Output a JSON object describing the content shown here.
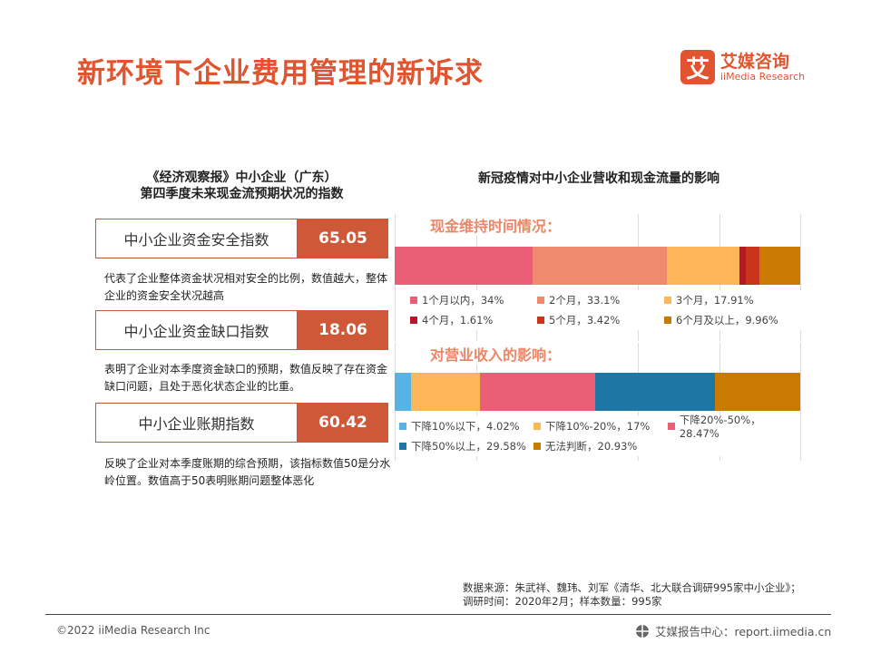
{
  "title": "新环境下企业费用管理的新诉求",
  "logo": {
    "mark": "艾",
    "cn": "艾媒咨询",
    "en": "iiMedia Research"
  },
  "left": {
    "heading": [
      "《经济观察报》中小企业（广东）",
      "第四季度未来现金流预期状况的指数"
    ],
    "indices": [
      {
        "name": "中小企业资金安全指数",
        "value": "65.05",
        "desc": "代表了企业整体资金状况相对安全的比例，数值越大，整体企业的资金安全状况越高"
      },
      {
        "name": "中小企业资金缺口指数",
        "value": "18.06",
        "desc": "表明了企业对本季度资金缺口的预期，数值反映了存在资金缺口问题，且处于恶化状态企业的比重。"
      },
      {
        "name": "中小企业账期指数",
        "value": "60.42",
        "desc": "反映了企业对本季度账期的综合预期，该指标数值50是分水岭位置。数值高于50表明账期问题整体恶化"
      }
    ]
  },
  "right": {
    "heading": "新冠疫情对中小企业营收和现金流量的影响"
  },
  "chart_data": [
    {
      "type": "bar",
      "stacked": true,
      "orientation": "horizontal",
      "title": "现金维持时间情况：",
      "legend_position": "bottom",
      "grid": true,
      "series": [
        {
          "name": "1个月以内",
          "value": 34,
          "label": "1个月以内，34%",
          "color": "#ea5f75"
        },
        {
          "name": "2个月",
          "value": 33.1,
          "label": "2个月，33.1%",
          "color": "#ef8a6e"
        },
        {
          "name": "3个月",
          "value": 17.91,
          "label": "3个月，17.91%",
          "color": "#fdb65a"
        },
        {
          "name": "4个月",
          "value": 1.61,
          "label": "4个月，1.61%",
          "color": "#b5182a"
        },
        {
          "name": "5个月",
          "value": 3.42,
          "label": "5个月，3.42%",
          "color": "#c9341a"
        },
        {
          "name": "6个月及以上",
          "value": 9.96,
          "label": "6个月及以上，9.96%",
          "color": "#c97a00"
        }
      ]
    },
    {
      "type": "bar",
      "stacked": true,
      "orientation": "horizontal",
      "title": "对营业收入的影响：",
      "legend_position": "bottom",
      "grid": true,
      "series": [
        {
          "name": "下降10%以下",
          "value": 4.02,
          "label": "下降10%以下，4.02%",
          "color": "#57b3e3"
        },
        {
          "name": "下降10%-20%",
          "value": 17,
          "label": "下降10%-20%，17%",
          "color": "#fdb65a"
        },
        {
          "name": "下降20%-50%",
          "value": 28.47,
          "label": "下降20%-50%，28.47%",
          "color": "#ea5f75"
        },
        {
          "name": "下降50%以上",
          "value": 29.58,
          "label": "下降50%以上，29.58%",
          "color": "#1e76a4"
        },
        {
          "name": "无法判断",
          "value": 20.93,
          "label": "无法判断，20.93%",
          "color": "#c97a00"
        }
      ]
    }
  ],
  "source": [
    "数据来源：朱武祥、魏玮、刘军《清华、北大联合调研995家中小企业》；",
    "调研时间：2020年2月；样本数量：995家"
  ],
  "footer": {
    "copyright": "©2022  iiMedia Research  Inc",
    "site": "艾媒报告中心：report.iimedia.cn"
  }
}
